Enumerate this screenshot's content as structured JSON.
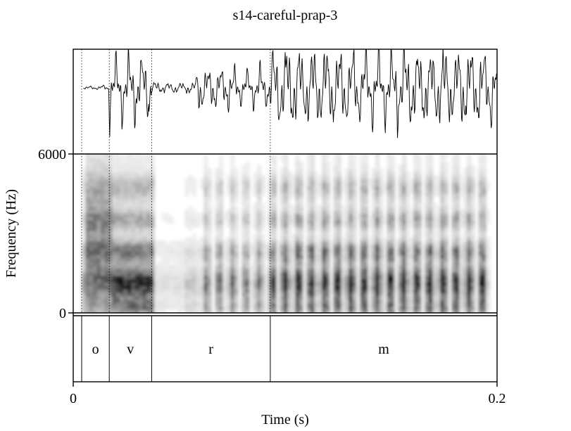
{
  "chart_data": {
    "type": "spectrogram",
    "title": "s14-careful-prap-3",
    "xlabel": "Time (s)",
    "ylabel": "Frequency (Hz)",
    "xlim": [
      0,
      0.2
    ],
    "ylim": [
      0,
      6000
    ],
    "x_ticks": [
      {
        "value": 0,
        "label": "0"
      },
      {
        "value": 0.2,
        "label": "0.2"
      }
    ],
    "y_ticks": [
      {
        "value": 0,
        "label": "0"
      },
      {
        "value": 6000,
        "label": "6000"
      }
    ],
    "panels": [
      "waveform",
      "spectrogram",
      "textgrid"
    ],
    "segments": [
      {
        "label": "o",
        "start": 0.004,
        "end": 0.017
      },
      {
        "label": "v",
        "start": 0.017,
        "end": 0.037
      },
      {
        "label": "r",
        "start": 0.037,
        "end": 0.093
      },
      {
        "label": "m",
        "start": 0.093,
        "end": 0.2
      }
    ],
    "boundaries": [
      0.004,
      0.017,
      0.037,
      0.093
    ],
    "grid": false
  }
}
